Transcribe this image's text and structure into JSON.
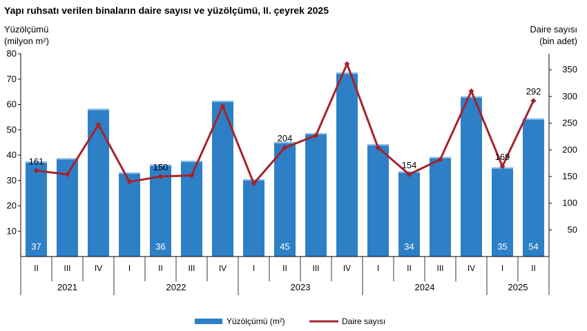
{
  "chart_data": {
    "type": "bar",
    "title": "Yapı ruhsatı verilen binaların daire sayısı ve yüzölçümü, II. çeyrek 2025",
    "y_left_label": [
      "Yüzölçümü",
      "(milyon m²)"
    ],
    "y_right_label": [
      "Daire sayısı",
      "(bin adet)"
    ],
    "y_left_lim": [
      0,
      80
    ],
    "y_left_ticks": [
      "10",
      "20",
      "30",
      "40",
      "50",
      "60",
      "70",
      "80"
    ],
    "y_right_lim": [
      0,
      380
    ],
    "y_right_ticks": [
      "50",
      "100",
      "150",
      "200",
      "250",
      "300",
      "350"
    ],
    "categories": [
      "II",
      "III",
      "IV",
      "I",
      "II",
      "III",
      "IV",
      "I",
      "II",
      "III",
      "IV",
      "I",
      "II",
      "III",
      "IV",
      "I",
      "II"
    ],
    "years": [
      {
        "label": "2021",
        "count": 3
      },
      {
        "label": "2022",
        "count": 4
      },
      {
        "label": "2023",
        "count": 4
      },
      {
        "label": "2024",
        "count": 4
      },
      {
        "label": "2025",
        "count": 2
      }
    ],
    "series": [
      {
        "name": "Yüzölçümü (m²)",
        "type": "bar",
        "axis": "left",
        "color": "#2e80c6",
        "values": [
          37.5,
          38.8,
          58.3,
          33.2,
          36.3,
          37.8,
          61.5,
          30.5,
          45.2,
          48.7,
          72.6,
          44.3,
          33.6,
          39.3,
          63.2,
          35.2,
          54.5
        ],
        "labels": [
          "37",
          "",
          "",
          "",
          "36",
          "",
          "",
          "",
          "45",
          "",
          "",
          "",
          "34",
          "",
          "",
          "35",
          "54"
        ]
      },
      {
        "name": "Daire sayısı",
        "type": "line",
        "axis": "right",
        "color": "#a5222b",
        "values": [
          161,
          154,
          247,
          140,
          150,
          152,
          282,
          137,
          204,
          227,
          361,
          204,
          154,
          182,
          310,
          169,
          292
        ],
        "labels": [
          "161",
          "",
          "",
          "",
          "150",
          "",
          "",
          "",
          "204",
          "",
          "",
          "",
          "154",
          "",
          "",
          "169",
          "292"
        ]
      }
    ],
    "legend_position": "bottom"
  }
}
